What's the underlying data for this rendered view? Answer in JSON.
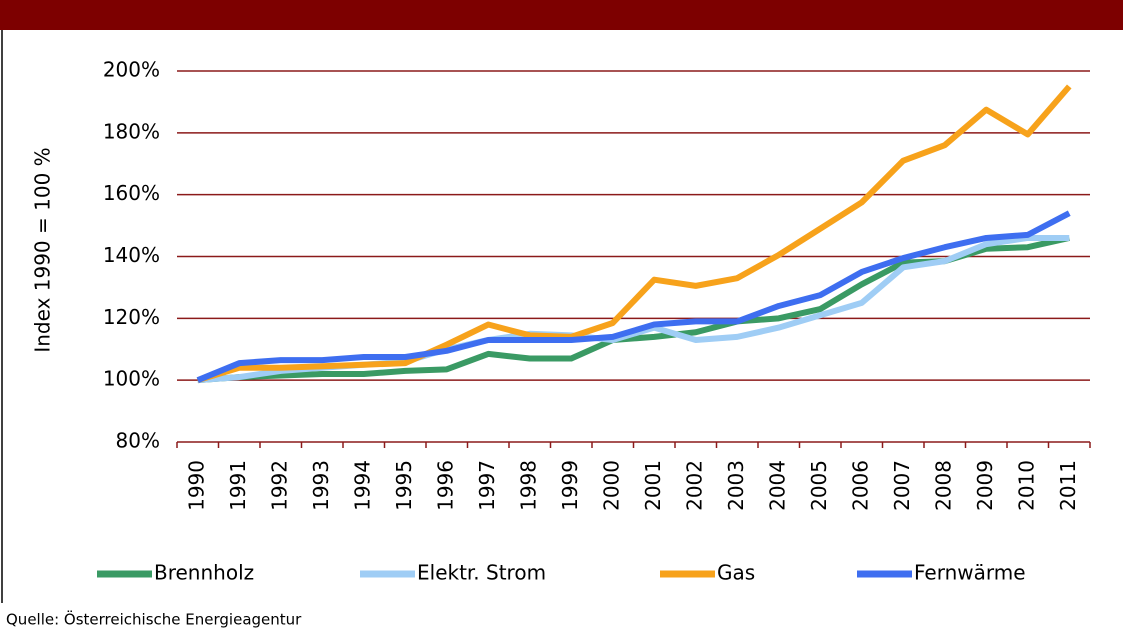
{
  "chart_data": {
    "type": "line",
    "y_label": "Index 1990 = 100 %",
    "categories": [
      "1990",
      "1991",
      "1992",
      "1993",
      "1994",
      "1995",
      "1996",
      "1997",
      "1998",
      "1999",
      "2000",
      "2001",
      "2002",
      "2003",
      "2004",
      "2005",
      "2006",
      "2007",
      "2008",
      "2009",
      "2010",
      "2011"
    ],
    "series": [
      {
        "name": "Brennholz",
        "color": "#3a9a64",
        "values": [
          100,
          101,
          101.5,
          102,
          102,
          103,
          103.5,
          108.5,
          107,
          107,
          113,
          114,
          115.5,
          119,
          120,
          123,
          131,
          138,
          138.5,
          142.5,
          143,
          146
        ]
      },
      {
        "name": "Elektr. Strom",
        "color": "#9fcdf5",
        "values": [
          100,
          101,
          103,
          104,
          105,
          106,
          110,
          113,
          115,
          114.5,
          113,
          117,
          113,
          114,
          117,
          121,
          125,
          136.5,
          138.5,
          144,
          146,
          146
        ]
      },
      {
        "name": "Gas",
        "color": "#f7a21b",
        "values": [
          100,
          104,
          104,
          104.5,
          105,
          105.5,
          111.5,
          118,
          114.5,
          114,
          118.5,
          132.5,
          130.5,
          133,
          140.5,
          149,
          157.5,
          171,
          176,
          187.5,
          179.5,
          195
        ]
      },
      {
        "name": "Fernwärme",
        "color": "#3e6ef0",
        "values": [
          100,
          105.5,
          106.5,
          106.5,
          107.5,
          107.5,
          109.5,
          113,
          113,
          113,
          114,
          118,
          119,
          119,
          124,
          127.5,
          135,
          139.5,
          143,
          146,
          147,
          154
        ]
      }
    ],
    "ylim": [
      80,
      200
    ],
    "yticks": [
      {
        "value": 80,
        "label": "80%"
      },
      {
        "value": 100,
        "label": "100%"
      },
      {
        "value": 120,
        "label": "120%"
      },
      {
        "value": 140,
        "label": "140%"
      },
      {
        "value": 160,
        "label": "160%"
      },
      {
        "value": 180,
        "label": "180%"
      },
      {
        "value": 200,
        "label": "200%"
      }
    ],
    "grid": true,
    "legend": "bottom",
    "source": "Quelle: Österreichische Energieagentur"
  }
}
